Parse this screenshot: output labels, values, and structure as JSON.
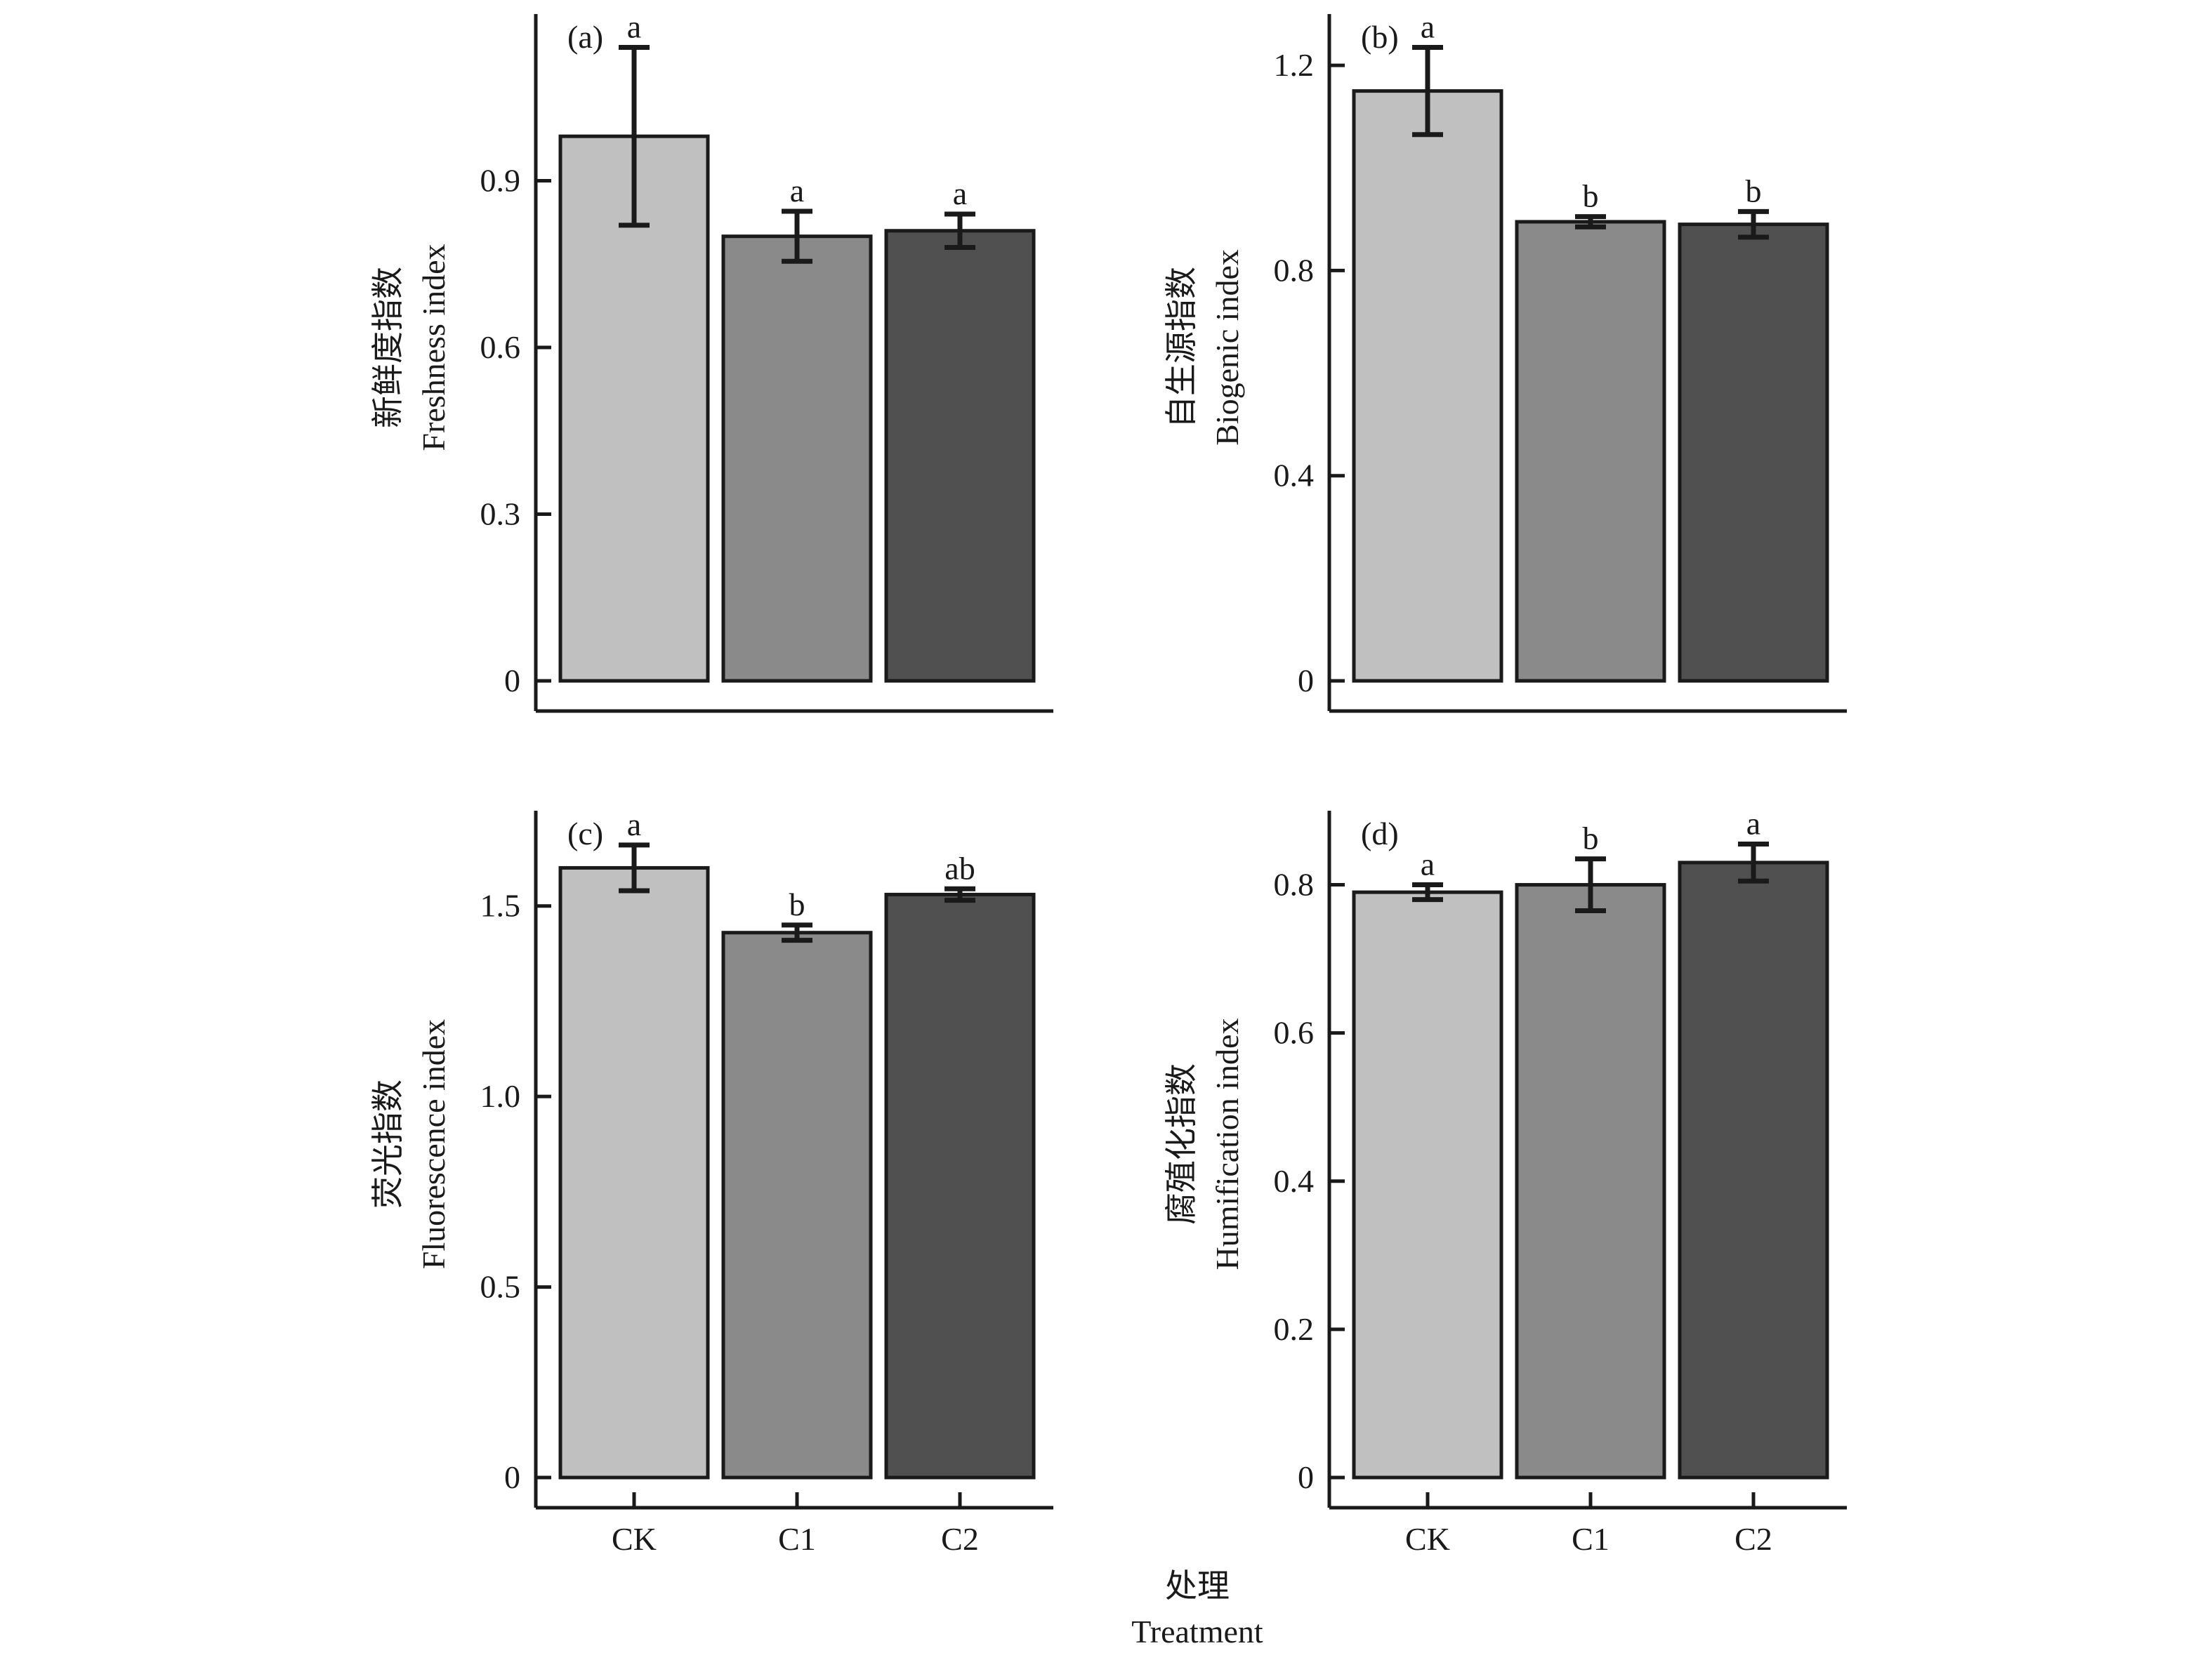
{
  "figure": {
    "xlabel_zh": "处理",
    "xlabel_en": "Treatment"
  },
  "chart_data": [
    {
      "type": "bar",
      "panel": "(a)",
      "ylabel_zh": "新鲜度指数",
      "ylabel_en": "Freshness index",
      "categories": [
        "CK",
        "C1",
        "C2"
      ],
      "values": [
        0.98,
        0.8,
        0.81
      ],
      "errors": [
        0.16,
        0.045,
        0.03
      ],
      "significance": [
        "a",
        "a",
        "a"
      ],
      "ylim": [
        0,
        1.2
      ],
      "yticks": [
        0,
        0.3,
        0.6,
        0.9
      ],
      "ytick_labels": [
        "0",
        "0.3",
        "0.6",
        "0.9"
      ],
      "colors": [
        "#c0c0c0",
        "#8a8a8a",
        "#505050"
      ],
      "show_xticklabels": false
    },
    {
      "type": "bar",
      "panel": "(b)",
      "ylabel_zh": "自生源指数",
      "ylabel_en": "Biogenic index",
      "categories": [
        "CK",
        "C1",
        "C2"
      ],
      "values": [
        1.15,
        0.895,
        0.89
      ],
      "errors": [
        0.085,
        0.01,
        0.025
      ],
      "significance": [
        "a",
        "b",
        "b"
      ],
      "ylim": [
        0,
        1.3
      ],
      "yticks": [
        0,
        0.4,
        0.8,
        1.2
      ],
      "ytick_labels": [
        "0",
        "0.4",
        "0.8",
        "1.2"
      ],
      "colors": [
        "#c0c0c0",
        "#8a8a8a",
        "#505050"
      ],
      "show_xticklabels": false
    },
    {
      "type": "bar",
      "panel": "(c)",
      "ylabel_zh": "荧光指数",
      "ylabel_en": "Fluorescence index",
      "categories": [
        "CK",
        "C1",
        "C2"
      ],
      "values": [
        1.6,
        1.43,
        1.53
      ],
      "errors": [
        0.06,
        0.02,
        0.015
      ],
      "significance": [
        "a",
        "b",
        "ab"
      ],
      "ylim": [
        0,
        1.75
      ],
      "yticks": [
        0,
        0.5,
        1.0,
        1.5
      ],
      "ytick_labels": [
        "0",
        "0.5",
        "1.0",
        "1.5"
      ],
      "colors": [
        "#c0c0c0",
        "#8a8a8a",
        "#505050"
      ],
      "show_xticklabels": true
    },
    {
      "type": "bar",
      "panel": "(d)",
      "ylabel_zh": "腐殖化指数",
      "ylabel_en": "Humification index",
      "categories": [
        "CK",
        "C1",
        "C2"
      ],
      "values": [
        0.79,
        0.8,
        0.83
      ],
      "errors": [
        0.01,
        0.035,
        0.025
      ],
      "significance": [
        "a",
        "b",
        "a"
      ],
      "ylim": [
        0,
        0.9
      ],
      "yticks": [
        0,
        0.2,
        0.4,
        0.6,
        0.8
      ],
      "ytick_labels": [
        "0",
        "0.2",
        "0.4",
        "0.6",
        "0.8"
      ],
      "colors": [
        "#c0c0c0",
        "#8a8a8a",
        "#505050"
      ],
      "show_xticklabels": true
    }
  ]
}
